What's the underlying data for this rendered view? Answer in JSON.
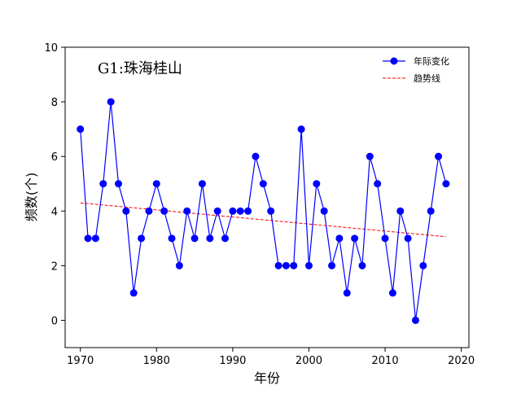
{
  "chart_data": {
    "type": "line",
    "annotation": "G1:珠海桂山",
    "xlabel": "年份",
    "ylabel": "频数(个)",
    "xlim": [
      1968,
      2021
    ],
    "ylim": [
      -1,
      10
    ],
    "xticks": [
      1970,
      1980,
      1990,
      2000,
      2010,
      2020
    ],
    "yticks": [
      0,
      2,
      4,
      6,
      8,
      10
    ],
    "grid": false,
    "legend": {
      "placement": "top-right",
      "entries": [
        "年际变化",
        "趋势线"
      ]
    },
    "series": [
      {
        "name": "年际变化",
        "color": "#0000ff",
        "marker": "circle",
        "x": [
          1970,
          1971,
          1972,
          1973,
          1974,
          1975,
          1976,
          1977,
          1978,
          1979,
          1980,
          1981,
          1982,
          1983,
          1984,
          1985,
          1986,
          1987,
          1988,
          1989,
          1990,
          1991,
          1992,
          1993,
          1994,
          1995,
          1996,
          1997,
          1998,
          1999,
          2000,
          2001,
          2002,
          2003,
          2004,
          2005,
          2006,
          2007,
          2008,
          2009,
          2010,
          2011,
          2012,
          2013,
          2014,
          2015,
          2016,
          2017,
          2018
        ],
        "y": [
          7,
          3,
          3,
          5,
          8,
          5,
          4,
          1,
          3,
          4,
          5,
          4,
          3,
          2,
          4,
          3,
          5,
          3,
          4,
          3,
          4,
          4,
          4,
          6,
          5,
          4,
          2,
          2,
          2,
          7,
          2,
          5,
          4,
          2,
          3,
          1,
          3,
          2,
          6,
          5,
          3,
          1,
          4,
          3,
          0,
          2,
          4,
          6,
          5
        ]
      },
      {
        "name": "趋势线",
        "color": "#ff0000",
        "style": "dashed",
        "x": [
          1970,
          2018
        ],
        "y": [
          4.3,
          3.06
        ]
      }
    ]
  }
}
